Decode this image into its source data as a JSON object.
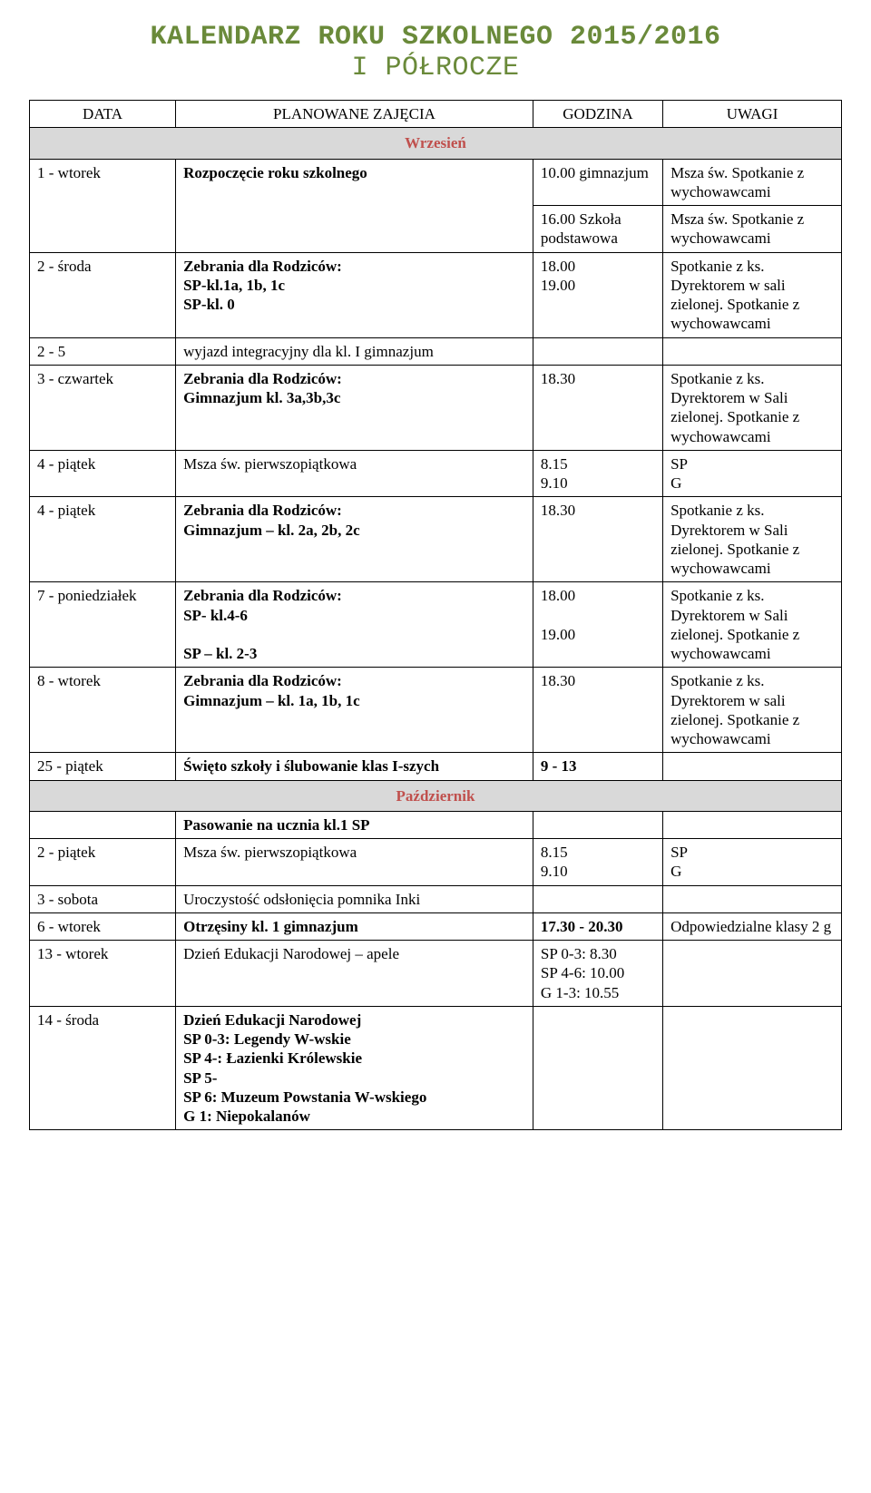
{
  "title": {
    "line1": "KALENDARZ ROKU SZKOLNEGO 2015/2016",
    "line2": "I PÓŁROCZE",
    "color": "#6a8a3a"
  },
  "colors": {
    "month_bg": "#d9d9d9",
    "month_text": "#c0504d"
  },
  "header": {
    "c1": "DATA",
    "c2": "PLANOWANE ZAJĘCIA",
    "c3": "GODZINA",
    "c4": "UWAGI"
  },
  "months": {
    "wrzesien": "Wrzesień",
    "pazdziernik": "Październik"
  },
  "rows": {
    "r1_data": "1 - wtorek",
    "r1_zaj": "Rozpoczęcie roku szkolnego",
    "r1_godz_a": "10.00 gimnazjum",
    "r1_godz_b": "16.00 Szkoła podstawowa",
    "r1_uw_a": "Msza św. Spotkanie z wychowawcami",
    "r1_uw_b": "Msza św. Spotkanie z wychowawcami",
    "r2_data": "2 - środa",
    "r2_zaj": "Zebrania dla Rodziców:\nSP-kl.1a, 1b, 1c\nSP-kl. 0",
    "r2_godz": "18.00\n19.00",
    "r2_uw": "Spotkanie z ks. Dyrektorem w sali zielonej. Spotkanie z wychowawcami",
    "r3_data": "2 - 5",
    "r3_zaj": "wyjazd integracyjny dla kl. I gimnazjum",
    "r4_data": "3 - czwartek",
    "r4_zaj": "Zebrania dla Rodziców:\nGimnazjum kl. 3a,3b,3c",
    "r4_godz": "18.30",
    "r4_uw": "Spotkanie z ks. Dyrektorem w Sali zielonej. Spotkanie z wychowawcami",
    "r5_data": "4 - piątek",
    "r5_zaj": "Msza św. pierwszopiątkowa",
    "r5_godz": "8.15\n9.10",
    "r5_uw": "SP\nG",
    "r6_data": "4 - piątek",
    "r6_zaj": "Zebrania dla Rodziców:\nGimnazjum – kl. 2a, 2b, 2c",
    "r6_godz": "18.30",
    "r6_uw": "Spotkanie z ks. Dyrektorem w Sali zielonej. Spotkanie z wychowawcami",
    "r7_data": "7 - poniedziałek",
    "r7_zaj": "Zebrania dla Rodziców:\nSP- kl.4-6\n\nSP – kl. 2-3",
    "r7_godz": "18.00\n\n19.00",
    "r7_uw": "Spotkanie z ks. Dyrektorem w Sali zielonej. Spotkanie z wychowawcami",
    "r8_data": "8 - wtorek",
    "r8_zaj": "Zebrania dla Rodziców:\nGimnazjum – kl. 1a, 1b, 1c",
    "r8_godz": "18.30",
    "r8_uw": "Spotkanie z ks. Dyrektorem w sali zielonej. Spotkanie z wychowawcami",
    "r9_data": "25 - piątek",
    "r9_zaj": "Święto szkoły i ślubowanie klas I-szych",
    "r9_godz": "9 - 13",
    "p0_zaj": "Pasowanie na ucznia kl.1 SP",
    "p1_data": "2 - piątek",
    "p1_zaj": "Msza św. pierwszopiątkowa",
    "p1_godz": "8.15\n9.10",
    "p1_uw": "SP\nG",
    "p2_data": "3 - sobota",
    "p2_zaj": "Uroczystość odsłonięcia pomnika Inki",
    "p3_data": "6 - wtorek",
    "p3_zaj": "Otrzęsiny kl. 1 gimnazjum",
    "p3_godz": "17.30 - 20.30",
    "p3_uw": "Odpowiedzialne klasy 2 g",
    "p4_data": "13 - wtorek",
    "p4_zaj": "Dzień Edukacji Narodowej – apele",
    "p4_godz": "SP 0-3: 8.30\nSP 4-6: 10.00\nG 1-3: 10.55",
    "p5_data": "14 - środa",
    "p5_zaj": "Dzień Edukacji Narodowej\nSP 0-3: Legendy W-wskie\nSP 4-: Łazienki Królewskie\nSP 5-\nSP 6: Muzeum Powstania W-wskiego\nG 1: Niepokalanów"
  }
}
